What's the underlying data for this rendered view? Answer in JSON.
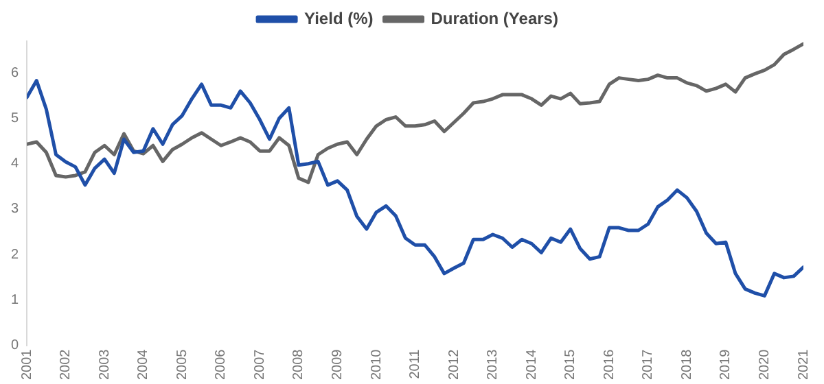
{
  "chart_data": {
    "type": "line",
    "x": [
      2001,
      2001.25,
      2001.5,
      2001.75,
      2002,
      2002.25,
      2002.5,
      2002.75,
      2003,
      2003.25,
      2003.5,
      2003.75,
      2004,
      2004.25,
      2004.5,
      2004.75,
      2005,
      2005.25,
      2005.5,
      2005.75,
      2006,
      2006.25,
      2006.5,
      2006.75,
      2007,
      2007.25,
      2007.5,
      2007.75,
      2008,
      2008.25,
      2008.5,
      2008.75,
      2009,
      2009.25,
      2009.5,
      2009.75,
      2010,
      2010.25,
      2010.5,
      2010.75,
      2011,
      2011.25,
      2011.5,
      2011.75,
      2012,
      2012.25,
      2012.5,
      2012.75,
      2013,
      2013.25,
      2013.5,
      2013.75,
      2014,
      2014.25,
      2014.5,
      2014.75,
      2015,
      2015.25,
      2015.5,
      2015.75,
      2016,
      2016.25,
      2016.5,
      2016.75,
      2017,
      2017.25,
      2017.5,
      2017.75,
      2018,
      2018.25,
      2018.5,
      2018.75,
      2019,
      2019.25,
      2019.5,
      2019.75,
      2020,
      2020.25,
      2020.5,
      2020.75,
      2021
    ],
    "series": [
      {
        "name": "Yield (%)",
        "color": "#1f4fa8",
        "values": [
          5.46,
          5.83,
          5.2,
          4.2,
          4.04,
          3.93,
          3.53,
          3.9,
          4.1,
          3.79,
          4.54,
          4.25,
          4.28,
          4.77,
          4.43,
          4.86,
          5.06,
          5.43,
          5.75,
          5.29,
          5.29,
          5.23,
          5.6,
          5.34,
          4.97,
          4.54,
          5.0,
          5.23,
          3.97,
          4.0,
          4.05,
          3.53,
          3.62,
          3.42,
          2.84,
          2.56,
          2.93,
          3.07,
          2.85,
          2.36,
          2.21,
          2.21,
          1.95,
          1.58,
          1.7,
          1.81,
          2.33,
          2.33,
          2.44,
          2.36,
          2.16,
          2.33,
          2.24,
          2.04,
          2.36,
          2.27,
          2.56,
          2.13,
          1.9,
          1.95,
          2.59,
          2.59,
          2.53,
          2.53,
          2.67,
          3.05,
          3.2,
          3.42,
          3.25,
          2.95,
          2.47,
          2.24,
          2.27,
          1.58,
          1.24,
          1.15,
          1.09,
          1.58,
          1.49,
          1.52,
          1.72
        ]
      },
      {
        "name": "Duration (Years)",
        "color": "#666666",
        "values": [
          4.43,
          4.48,
          4.25,
          3.74,
          3.71,
          3.74,
          3.82,
          4.25,
          4.4,
          4.2,
          4.66,
          4.28,
          4.22,
          4.4,
          4.05,
          4.31,
          4.43,
          4.57,
          4.68,
          4.54,
          4.4,
          4.48,
          4.57,
          4.48,
          4.28,
          4.28,
          4.57,
          4.4,
          3.68,
          3.59,
          4.2,
          4.34,
          4.43,
          4.48,
          4.2,
          4.54,
          4.83,
          4.97,
          5.03,
          4.83,
          4.83,
          4.86,
          4.94,
          4.71,
          4.91,
          5.11,
          5.34,
          5.37,
          5.43,
          5.52,
          5.52,
          5.52,
          5.43,
          5.29,
          5.49,
          5.43,
          5.55,
          5.32,
          5.34,
          5.37,
          5.75,
          5.89,
          5.86,
          5.83,
          5.86,
          5.95,
          5.89,
          5.89,
          5.78,
          5.72,
          5.6,
          5.66,
          5.75,
          5.58,
          5.89,
          5.98,
          6.06,
          6.18,
          6.41,
          6.52,
          6.64
        ]
      }
    ],
    "xlim": [
      2001,
      2021
    ],
    "xticks": [
      2001,
      2002,
      2003,
      2004,
      2005,
      2006,
      2007,
      2008,
      2009,
      2010,
      2011,
      2012,
      2013,
      2014,
      2015,
      2016,
      2017,
      2018,
      2019,
      2020,
      2021
    ],
    "ylim": [
      0,
      6.7
    ],
    "yticks": [
      0,
      1,
      2,
      3,
      4,
      5,
      6
    ],
    "grid": false,
    "legend": "top",
    "marker": "none",
    "line_style": "solid"
  }
}
